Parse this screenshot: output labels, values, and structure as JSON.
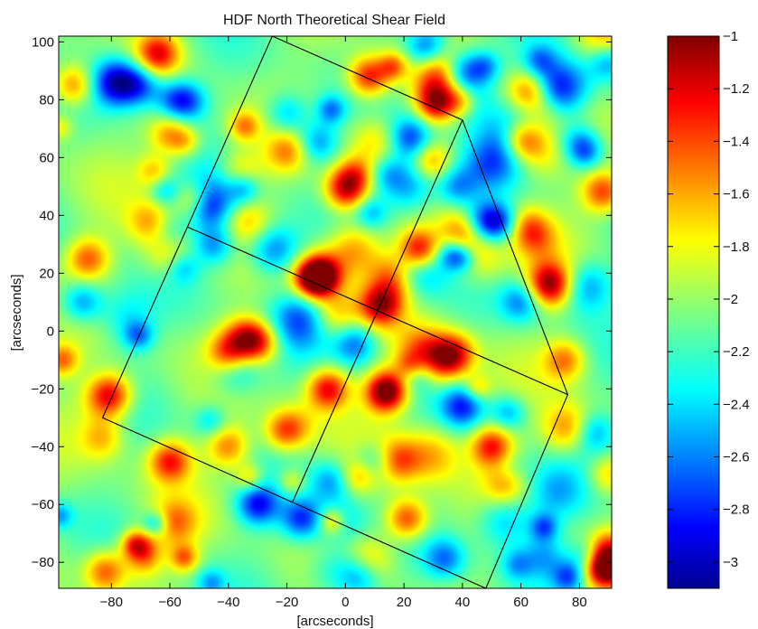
{
  "chart_data": {
    "type": "heatmap",
    "title": "HDF North Theoretical Shear Field",
    "xlabel": "[arcseconds]",
    "ylabel": "[arcseconds]",
    "xlim": [
      -98,
      91
    ],
    "ylim": [
      -89,
      102
    ],
    "xticks": [
      -80,
      -60,
      -40,
      -20,
      0,
      20,
      40,
      60,
      80
    ],
    "yticks": [
      -80,
      -60,
      -40,
      -20,
      0,
      20,
      40,
      60,
      80,
      100
    ],
    "xtick_labels": [
      "−80",
      "−60",
      "−40",
      "−20",
      "0",
      "20",
      "40",
      "60",
      "80"
    ],
    "ytick_labels": [
      "−80",
      "−60",
      "−40",
      "−20",
      "0",
      "20",
      "40",
      "60",
      "80",
      "100"
    ],
    "colorbar": {
      "range": [
        -3.1,
        -1.0
      ],
      "ticks": [
        -1,
        -1.2,
        -1.4,
        -1.6,
        -1.8,
        -2,
        -2.2,
        -2.4,
        -2.6,
        -2.8,
        -3
      ],
      "tick_labels": [
        "−1",
        "−1.2",
        "−1.4",
        "−1.6",
        "−1.8",
        "−2",
        "−2.2",
        "−2.4",
        "−2.6",
        "−2.8",
        "−3"
      ],
      "colormap": "jet"
    },
    "field_background": -2.05,
    "outline": {
      "color": "#000000",
      "polygon": [
        [
          -25,
          102
        ],
        [
          40,
          73
        ],
        [
          76,
          -22
        ],
        [
          48,
          -89
        ],
        [
          -83,
          -30
        ],
        [
          -25,
          102
        ]
      ],
      "inner_lines": [
        [
          [
            -54,
            36
          ],
          [
            76,
            -22
          ]
        ],
        [
          [
            40,
            73
          ],
          [
            -18,
            -59
          ]
        ]
      ]
    },
    "features": [
      {
        "kind": "high",
        "x": 25,
        "y": 28,
        "v": -1.05
      },
      {
        "kind": "high",
        "x": 0,
        "y": 49,
        "v": -1.15
      },
      {
        "kind": "high",
        "x": 8,
        "y": 88,
        "v": -1.2
      },
      {
        "kind": "high",
        "x": -64,
        "y": 96,
        "v": -1.3
      },
      {
        "kind": "high",
        "x": 60,
        "y": 66,
        "v": -1.25
      },
      {
        "kind": "high",
        "x": 63,
        "y": 83,
        "v": -1.3
      },
      {
        "kind": "high",
        "x": 88,
        "y": 48,
        "v": -1.35
      },
      {
        "kind": "high",
        "x": -8,
        "y": 20,
        "v": -1.3
      },
      {
        "kind": "high",
        "x": 12,
        "y": 9,
        "v": -1.2
      },
      {
        "kind": "high",
        "x": -40,
        "y": -8,
        "v": -1.25
      },
      {
        "kind": "high",
        "x": -30,
        "y": -4,
        "v": -1.3
      },
      {
        "kind": "high",
        "x": -6,
        "y": -20,
        "v": -1.2
      },
      {
        "kind": "high",
        "x": 15,
        "y": -20,
        "v": -1.25
      },
      {
        "kind": "high",
        "x": 37,
        "y": -8,
        "v": -1.3
      },
      {
        "kind": "high",
        "x": 50,
        "y": -40,
        "v": -1.25
      },
      {
        "kind": "high",
        "x": 55,
        "y": -52,
        "v": -1.35
      },
      {
        "kind": "high",
        "x": 21,
        "y": -65,
        "v": -1.3
      },
      {
        "kind": "high",
        "x": -60,
        "y": -45,
        "v": -1.3
      },
      {
        "kind": "high",
        "x": -80,
        "y": -22,
        "v": -1.4
      },
      {
        "kind": "high",
        "x": -88,
        "y": 25,
        "v": -1.45
      },
      {
        "kind": "high",
        "x": -93,
        "y": 85,
        "v": -1.45
      },
      {
        "kind": "high",
        "x": -82,
        "y": -83,
        "v": -1.4
      },
      {
        "kind": "high",
        "x": 88,
        "y": -82,
        "v": -1.3
      },
      {
        "kind": "high",
        "x": -35,
        "y": -2,
        "v": -1.5
      },
      {
        "kind": "high",
        "x": -12,
        "y": 18,
        "v": -1.45
      },
      {
        "kind": "high",
        "x": -20,
        "y": 62,
        "v": -1.6
      },
      {
        "kind": "high",
        "x": -60,
        "y": 68,
        "v": -1.5
      },
      {
        "kind": "high",
        "x": 70,
        "y": 15,
        "v": -1.5
      },
      {
        "kind": "high",
        "x": 75,
        "y": -10,
        "v": -1.5
      },
      {
        "kind": "high",
        "x": -40,
        "y": -40,
        "v": -1.5
      },
      {
        "kind": "low",
        "x": 28,
        "y": 98,
        "v": -2.75
      },
      {
        "kind": "low",
        "x": 40,
        "y": 90,
        "v": -2.7
      },
      {
        "kind": "low",
        "x": 48,
        "y": 38,
        "v": -2.75
      },
      {
        "kind": "low",
        "x": -45,
        "y": 30,
        "v": -2.6
      },
      {
        "kind": "low",
        "x": -30,
        "y": -60,
        "v": -2.8
      },
      {
        "kind": "low",
        "x": -15,
        "y": -65,
        "v": -2.75
      },
      {
        "kind": "low",
        "x": 80,
        "y": 65,
        "v": -2.6
      },
      {
        "kind": "low",
        "x": -70,
        "y": 85,
        "v": -2.6
      },
      {
        "kind": "low",
        "x": -58,
        "y": 80,
        "v": -2.65
      },
      {
        "kind": "low",
        "x": 38,
        "y": 50,
        "v": -2.55
      },
      {
        "kind": "low",
        "x": 40,
        "y": -26,
        "v": -2.7
      },
      {
        "kind": "low",
        "x": 10,
        "y": -45,
        "v": -2.6
      },
      {
        "kind": "low",
        "x": -90,
        "y": 10,
        "v": -2.6
      },
      {
        "kind": "low",
        "x": 5,
        "y": -85,
        "v": -2.5
      },
      {
        "kind": "low",
        "x": 60,
        "y": 10,
        "v": -2.55
      },
      {
        "kind": "low",
        "x": -20,
        "y": 75,
        "v": -2.5
      },
      {
        "kind": "low",
        "x": 85,
        "y": -35,
        "v": -2.5
      },
      {
        "kind": "low",
        "x": -5,
        "y": -52,
        "v": -2.5
      }
    ]
  }
}
